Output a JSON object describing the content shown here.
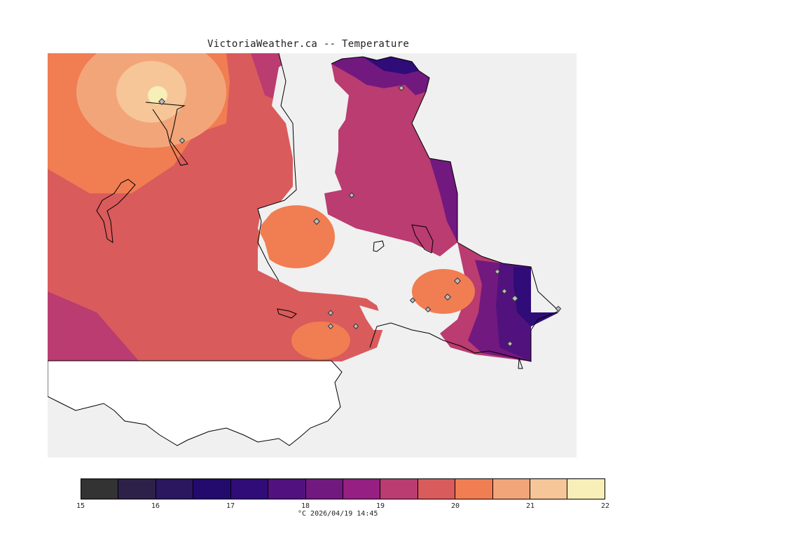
{
  "title": "VictoriaWeather.ca -- Temperature",
  "caption": "°C  2026/04/19 14:45",
  "colorbar": {
    "labels": [
      "15",
      "16",
      "17",
      "18",
      "19",
      "20",
      "21",
      "22"
    ],
    "colors": [
      "#333333",
      "#2e2149",
      "#2a1760",
      "#230b6e",
      "#2f0c78",
      "#51127e",
      "#72197f",
      "#951f82",
      "#ba3c70",
      "#d95b5c",
      "#f17d52",
      "#f3a57a",
      "#f6c698",
      "#f7eeb8"
    ]
  },
  "map_colors": {
    "background": "#f0f0f0",
    "land_unfilled": "#ffffff",
    "coast": "#000000"
  },
  "stations_count_note": ""
}
